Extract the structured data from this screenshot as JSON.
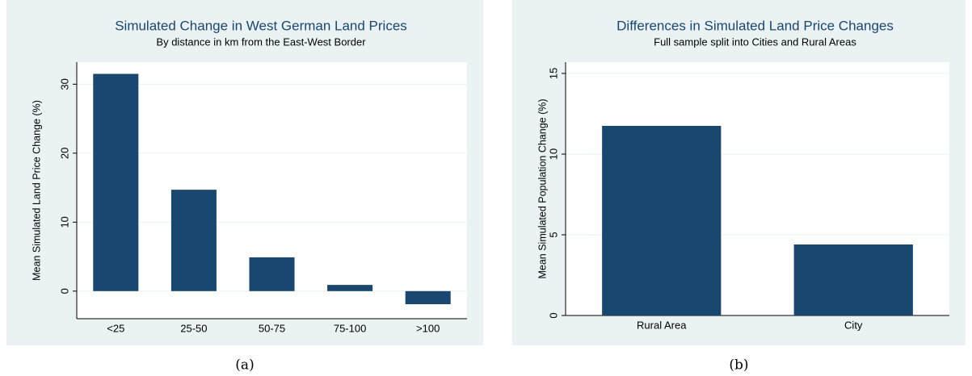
{
  "chart_data": [
    {
      "type": "bar",
      "title": "Simulated Change in West German Land Prices",
      "subtitle": "By distance in km from the East-West Border",
      "y_label": "Mean Simulated Land Price Change (%)",
      "categories": [
        "<25",
        "25-50",
        "50-75",
        "75-100",
        ">100"
      ],
      "values": [
        31.5,
        14.7,
        4.9,
        0.9,
        -1.9
      ],
      "color": "#1a476f",
      "ylim": [
        -4,
        33.2
      ],
      "yticks": [
        0,
        10,
        20,
        30
      ],
      "grid": true,
      "caption": "(a)"
    },
    {
      "type": "bar",
      "title": "Differences in Simulated Land Price Changes",
      "subtitle": "Full sample split into Cities and Rural Areas",
      "y_label": "Mean Simulated Population Change (%)",
      "categories": [
        "Rural Area",
        "City"
      ],
      "values": [
        11.75,
        4.4
      ],
      "color": "#1a476f",
      "ylim": [
        0,
        15.7
      ],
      "yticks": [
        0,
        5,
        10,
        15
      ],
      "grid": true,
      "caption": "(b)"
    }
  ]
}
